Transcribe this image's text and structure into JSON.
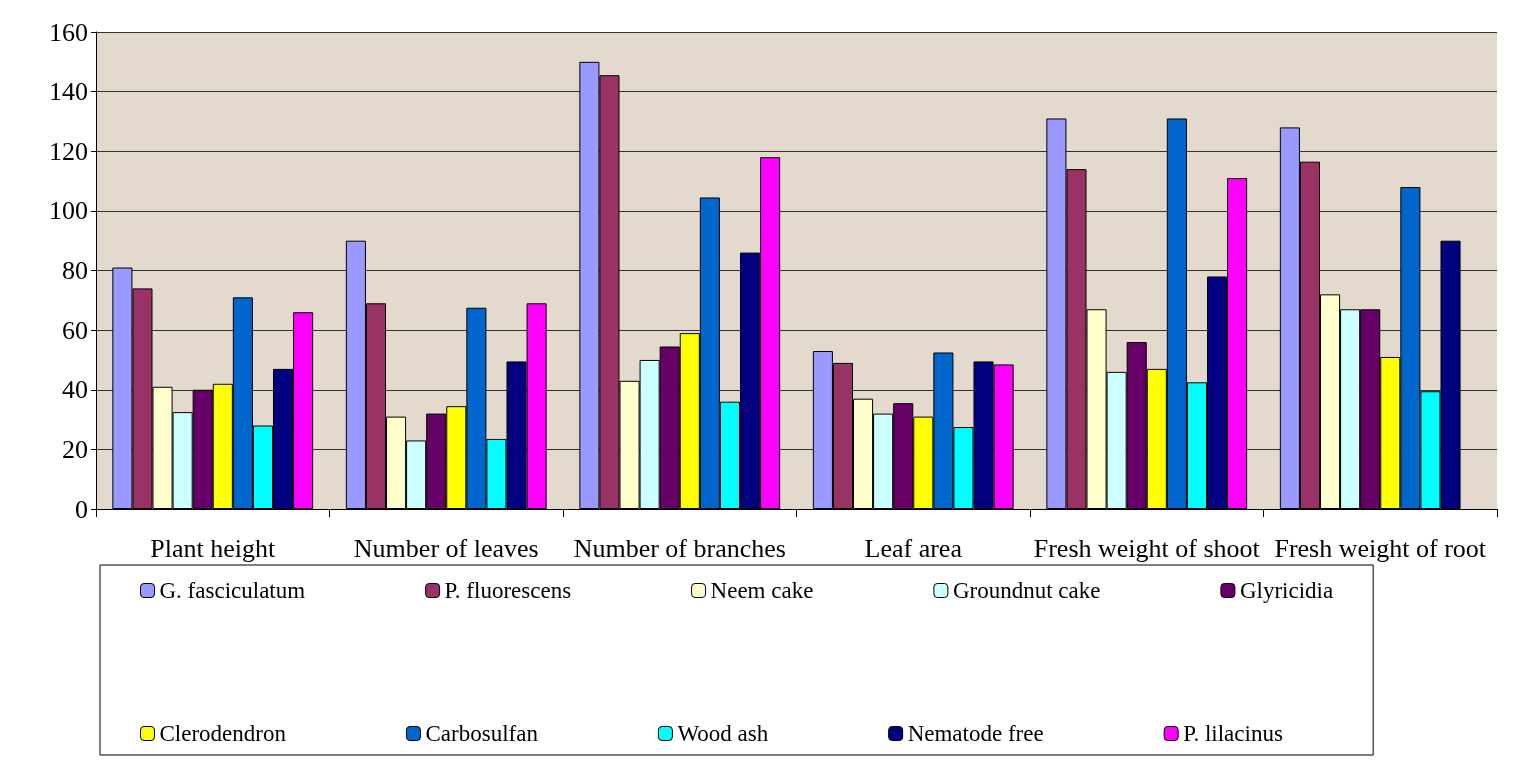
{
  "chart_data": {
    "type": "bar",
    "categories": [
      "Plant height",
      "Number of leaves",
      "Number of branches",
      "Leaf area",
      "Fresh weight of shoot",
      "Fresh weight of root"
    ],
    "series": [
      {
        "name": "G. fasciculatum",
        "color": "#9999ff",
        "values": [
          81,
          90,
          150,
          53,
          131,
          128
        ]
      },
      {
        "name": "P. fluorescens",
        "color": "#993366",
        "values": [
          74,
          69,
          145.5,
          49,
          114,
          116.5
        ]
      },
      {
        "name": "Neem cake",
        "color": "#ffffcc",
        "values": [
          41,
          31,
          43,
          37,
          67,
          72
        ]
      },
      {
        "name": "Groundnut cake",
        "color": "#ccffff",
        "values": [
          32.5,
          23,
          50,
          32,
          46,
          67
        ]
      },
      {
        "name": "Glyricidia",
        "color": "#660066",
        "values": [
          40,
          32,
          54.5,
          35.5,
          56,
          67
        ]
      },
      {
        "name": "Clerodendron",
        "color": "#ffff00",
        "values": [
          42,
          34.5,
          59,
          31,
          47,
          51
        ]
      },
      {
        "name": "Carbosulfan",
        "color": "#0066cc",
        "values": [
          71,
          67.5,
          104.5,
          52.5,
          131,
          108
        ]
      },
      {
        "name": "Wood ash",
        "color": "#00ffff",
        "values": [
          28,
          23.5,
          36,
          27.5,
          42.5,
          39.5
        ]
      },
      {
        "name": "Nematode free",
        "color": "#000080",
        "values": [
          47,
          49.5,
          86,
          49.5,
          78,
          90
        ]
      },
      {
        "name": "P. lilacinus",
        "color": "#ff00ff",
        "values": [
          66,
          69,
          118,
          48.5,
          111,
          null
        ]
      }
    ],
    "ylim": [
      0,
      160
    ],
    "yticks": [
      0,
      20,
      40,
      60,
      80,
      100,
      120,
      140,
      160
    ],
    "grid": "y",
    "legend": "bottom"
  }
}
